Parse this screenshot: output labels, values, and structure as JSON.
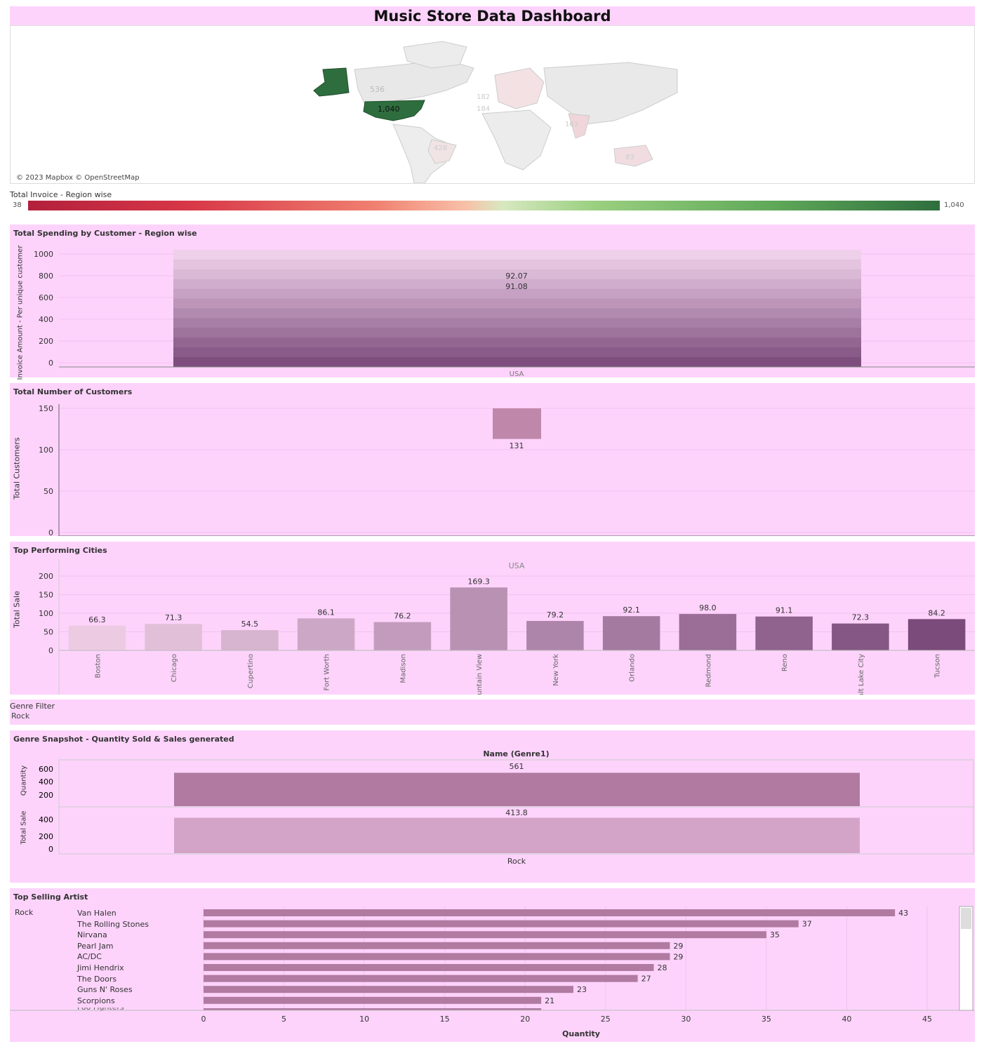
{
  "dashboard": {
    "title": "Music Store Data Dashboard"
  },
  "map": {
    "credit": "© 2023 Mapbox © OpenStreetMap",
    "labels": [
      "536",
      "1,040",
      "428",
      "182",
      "184",
      "163",
      "83"
    ],
    "legend_title": "Total Invoice - Region wise",
    "legend_min": "38",
    "legend_max": "1,040"
  },
  "spending": {
    "title": "Total Spending by Customer - Region wise",
    "ylabel": "Invoice Amount - Per unique customer",
    "yticks": [
      "1000",
      "800",
      "600",
      "400",
      "200",
      "0"
    ],
    "xcat": "USA",
    "labels": [
      "92.07",
      "91.08"
    ]
  },
  "customers": {
    "title": "Total Number of Customers",
    "ylabel": "Total Customers",
    "yticks": [
      "150",
      "100",
      "50",
      "0"
    ],
    "value_label": "131"
  },
  "cities": {
    "title": "Top Performing Cities",
    "ylabel": "Total Sale",
    "header": "USA",
    "yticks": [
      "200",
      "150",
      "100",
      "50",
      "0"
    ]
  },
  "genre_filter": {
    "title": "Genre Filter",
    "value": "Rock"
  },
  "genre_snapshot": {
    "title": "Genre Snapshot -  Quantity Sold & Sales generated",
    "column_header": "Name (Genre1)",
    "qty_label": "Quantity",
    "qty_ticks": [
      "600",
      "400",
      "200"
    ],
    "qty_value": "561",
    "sale_label": "Total Sale",
    "sale_ticks": [
      "400",
      "200",
      "0"
    ],
    "sale_value": "413.8",
    "category": "Rock"
  },
  "artists": {
    "title": "Top Selling Artist",
    "genre": "Rock",
    "xlabel": "Quantity",
    "xticks": [
      "0",
      "5",
      "10",
      "15",
      "20",
      "25",
      "30",
      "35",
      "40",
      "45"
    ],
    "partial_row": "Foo Fighters"
  },
  "colors": {
    "panel": "#fdd3fb",
    "map_high": "#2e6e3e",
    "map_low": "#b3203c",
    "bar_default": "#b07aa1"
  },
  "chart_data": [
    {
      "type": "bar",
      "title": "Total Spending by Customer - Region wise",
      "ylabel": "Invoice Amount - Per unique customer",
      "categories": [
        "USA"
      ],
      "values": [
        1040
      ],
      "ylim": [
        0,
        1000
      ]
    },
    {
      "type": "bar",
      "title": "Total Number of Customers",
      "ylabel": "Total Customers",
      "categories": [
        "USA"
      ],
      "values": [
        131
      ],
      "ylim": [
        0,
        150
      ]
    },
    {
      "type": "bar",
      "title": "Top Performing Cities",
      "ylabel": "Total Sale",
      "categories": [
        "Boston",
        "Chicago",
        "Cupertino",
        "Fort Worth",
        "Madison",
        "Mountain View",
        "New York",
        "Orlando",
        "Redmond",
        "Reno",
        "Salt Lake City",
        "Tucson"
      ],
      "values": [
        66.3,
        71.3,
        54.5,
        86.1,
        76.2,
        169.3,
        79.2,
        92.1,
        98.0,
        91.1,
        72.3,
        84.2
      ],
      "ylim": [
        0,
        200
      ]
    },
    {
      "type": "bar",
      "title": "Genre Snapshot -  Quantity Sold & Sales generated",
      "categories": [
        "Rock"
      ],
      "series": [
        {
          "name": "Quantity",
          "values": [
            561
          ]
        },
        {
          "name": "Total Sale",
          "values": [
            413.8
          ]
        }
      ]
    },
    {
      "type": "bar",
      "title": "Top Selling Artist",
      "xlabel": "Quantity",
      "categories": [
        "Van Halen",
        "The Rolling Stones",
        "Nirvana",
        "Pearl Jam",
        "AC/DC",
        "Jimi Hendrix",
        "The Doors",
        "Guns N' Roses",
        "Scorpions"
      ],
      "values": [
        43,
        37,
        35,
        29,
        29,
        28,
        27,
        23,
        21
      ],
      "xlim": [
        0,
        45
      ]
    }
  ]
}
